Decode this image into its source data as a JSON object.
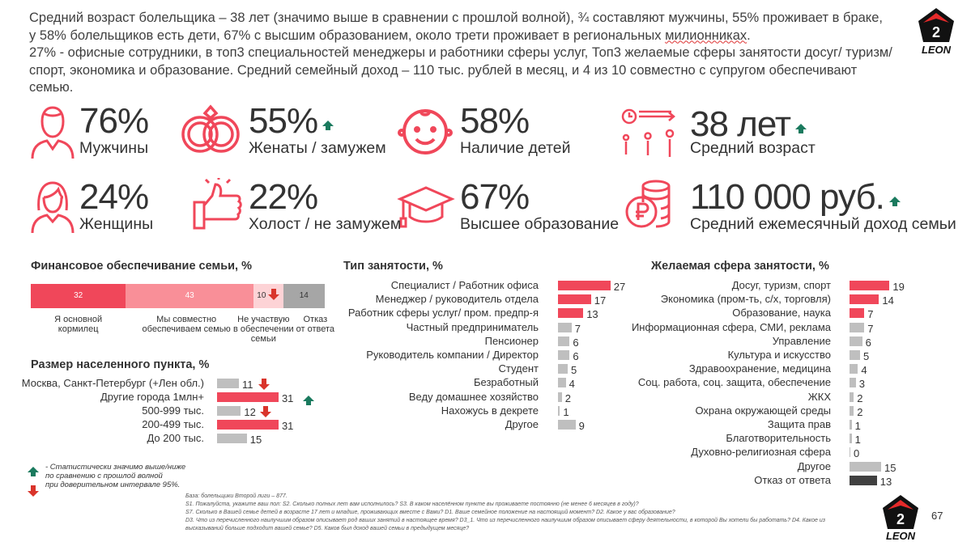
{
  "intro": {
    "line1": "Средний возраст болельщика – 38 лет (значимо выше в сравнении с прошлой волной), ¾ составляют мужчины, 55% проживает в браке,",
    "line2_a": "у 58% болельщиков есть дети, 67% с высшим образованием, около трети проживает в региональных ",
    "line2_b": "милионниках",
    "line2_c": ".",
    "line3": "27% - офисные сотрудники, в топ3 специальностей менеджеры и работники сферы услуг, Топ3 желаемые сферы занятости досуг/ туризм/",
    "line4": "спорт, экономика и образование. Средний семейный доход – 110 тыс. рублей в месяц, и 4 из 10 совместно с супругом обеспечивают семью."
  },
  "logo": {
    "text": "LEON",
    "badge": "2"
  },
  "kpis": [
    {
      "icon": "man-icon",
      "value": "76%",
      "label": "Мужчины"
    },
    {
      "icon": "rings-icon",
      "value": "55%",
      "label": "Женаты / замужем",
      "trend": "up"
    },
    {
      "icon": "baby-face-icon",
      "value": "58%",
      "label": "Наличие детей"
    },
    {
      "icon": "age-growth-icon",
      "value": "38 лет",
      "label": "Средний возраст",
      "trend": "up"
    },
    {
      "icon": "woman-icon",
      "value": "24%",
      "label": "Женщины"
    },
    {
      "icon": "thumbs-up-icon",
      "value": "22%",
      "label": "Холост / не замужем"
    },
    {
      "icon": "graduation-cap-icon",
      "value": "67%",
      "label": "Высшее образование"
    },
    {
      "icon": "coins-icon",
      "value": "110 000 руб.",
      "label": "Средний ежемесячный доход семьи",
      "trend": "up"
    }
  ],
  "finance": {
    "title": "Финансовое обеспечивание семьи, %",
    "segments": [
      {
        "value": 32,
        "label1": "Я основной",
        "label2": "кормилец",
        "label3": "",
        "color": "#f0475a"
      },
      {
        "value": 43,
        "label1": "Мы совместно",
        "label2": "обеспечиваем семью",
        "label3": "",
        "color": "#f98f98"
      },
      {
        "value": 10,
        "label1": "Не участвую",
        "label2": "в обеспечении",
        "label3": "семьи",
        "color": "#fdd3d6",
        "trend": "down"
      },
      {
        "value": 14,
        "label1": "Отказ",
        "label2": "от ответа",
        "label3": "",
        "color": "#a6a6a6"
      }
    ]
  },
  "settlement": {
    "title": "Размер населенного пункта, %",
    "rows": [
      {
        "label": "Москва, Санкт-Петербург (+Лен обл.)",
        "value": 11,
        "color": "#bfbfbf",
        "trend": "down"
      },
      {
        "label": "Другие города 1млн+",
        "value": 31,
        "color": "#f0475a",
        "trend": "up"
      },
      {
        "label": "500-999 тыс.",
        "value": 12,
        "color": "#bfbfbf",
        "trend": "down"
      },
      {
        "label": "200-499 тыс.",
        "value": 31,
        "color": "#f0475a"
      },
      {
        "label": "До 200 тыс.",
        "value": 15,
        "color": "#bfbfbf"
      }
    ]
  },
  "employment": {
    "title": "Тип занятости, %",
    "rows": [
      {
        "label": "Специалист / Работник офиса",
        "value": 27,
        "color": "#f0475a"
      },
      {
        "label": "Менеджер / руководитель отдела",
        "value": 17,
        "color": "#f0475a"
      },
      {
        "label": "Работник сферы услуг/ пром. предпр-я",
        "value": 13,
        "color": "#f0475a"
      },
      {
        "label": "Частный предприниматель",
        "value": 7,
        "color": "#bfbfbf"
      },
      {
        "label": "Пенсионер",
        "value": 6,
        "color": "#bfbfbf"
      },
      {
        "label": "Руководитель компании / Директор",
        "value": 6,
        "color": "#bfbfbf"
      },
      {
        "label": "Студент",
        "value": 5,
        "color": "#bfbfbf"
      },
      {
        "label": "Безработный",
        "value": 4,
        "color": "#bfbfbf"
      },
      {
        "label": "Веду домашнее хозяйство",
        "value": 2,
        "color": "#bfbfbf"
      },
      {
        "label": "Нахожусь в декрете",
        "value": 1,
        "color": "#bfbfbf"
      },
      {
        "label": "Другое",
        "value": 9,
        "color": "#bfbfbf"
      }
    ]
  },
  "desired": {
    "title": "Желаемая сфера занятости, %",
    "rows": [
      {
        "label": "Досуг, туризм, спорт",
        "value": 19,
        "color": "#f0475a"
      },
      {
        "label": "Экономика (пром-ть, с/х, торговля)",
        "value": 14,
        "color": "#f0475a"
      },
      {
        "label": "Образование, наука",
        "value": 7,
        "color": "#f0475a"
      },
      {
        "label": "Информационная сфера, СМИ, реклама",
        "value": 7,
        "color": "#bfbfbf"
      },
      {
        "label": "Управление",
        "value": 6,
        "color": "#bfbfbf"
      },
      {
        "label": "Культура и искусство",
        "value": 5,
        "color": "#bfbfbf"
      },
      {
        "label": "Здравоохранение, медицина",
        "value": 4,
        "color": "#bfbfbf"
      },
      {
        "label": "Соц. работа, соц. защита, обеспечение",
        "value": 3,
        "color": "#bfbfbf"
      },
      {
        "label": "ЖКХ",
        "value": 2,
        "color": "#bfbfbf"
      },
      {
        "label": "Охрана окружающей среды",
        "value": 2,
        "color": "#bfbfbf"
      },
      {
        "label": "Защита прав",
        "value": 1,
        "color": "#bfbfbf"
      },
      {
        "label": "Благотворительность",
        "value": 1,
        "color": "#bfbfbf"
      },
      {
        "label": "Духовно-религиозная сфера",
        "value": 0,
        "color": "#bfbfbf"
      },
      {
        "label": "Другое",
        "value": 15,
        "color": "#bfbfbf"
      },
      {
        "label": "Отказ от ответа",
        "value": 13,
        "color": "#404040"
      }
    ]
  },
  "legend": {
    "line1": "- Статистически значимо выше/ниже",
    "line2": "по сравнению с прошлой волной",
    "line3": "при доверительном интервале 95%."
  },
  "footnote": {
    "base": "База: болельщики Второй лиги – 877.",
    "line1": "S1. Пожалуйста, укажите ваш пол: S2. Сколько полных лет вам исполнилось? S3. В каком населённом пункте вы проживаете постоянно (не менее 6 месяцев в году)?",
    "line2": "S7. Сколько в Вашей семье детей в возрасте 17 лет и  младше, проживающих вместе с Вами? D1. Ваше семейное положение на настоящий момент? D2. Какое у вас образование?",
    "line3": "D3. Что из перечисленного наилучшим образом описывает род ваших занятий в настоящее время? D3_1. Что из перечисленного наилучшим образом описывает сферу деятельности, в которой Вы хотели бы работать? D4. Какое из",
    "line4": "высказываний больше подходит вашей семье? D5. Каков был доход вашей семьи в предыдущем месяце?"
  },
  "page_number": "67",
  "colors": {
    "accent": "#f0475a",
    "up": "#1a7a5e",
    "down": "#d9342b",
    "neutral": "#bfbfbf"
  }
}
